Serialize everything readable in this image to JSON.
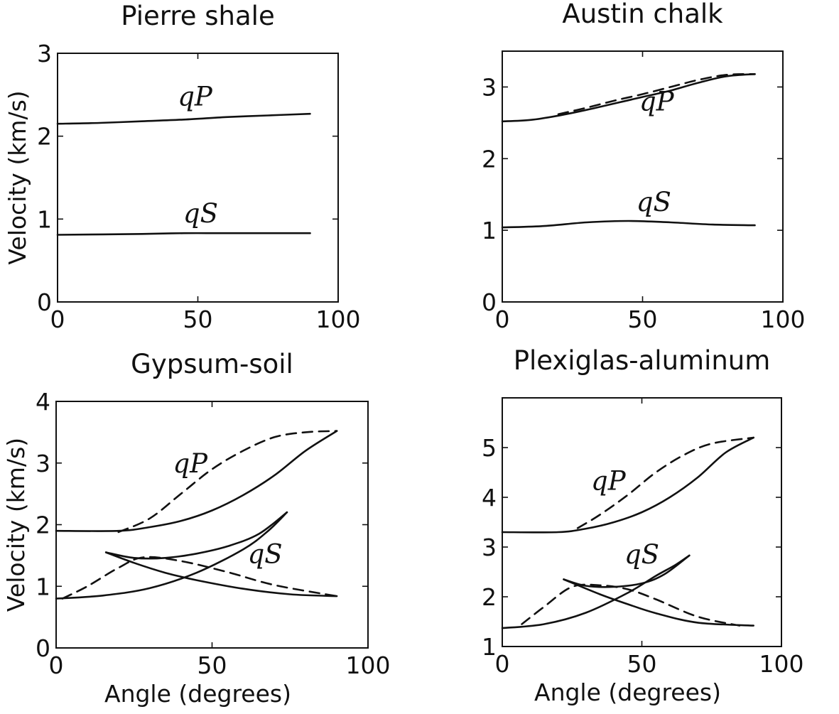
{
  "chart_data": [
    {
      "type": "line",
      "title": "Pierre shale",
      "xlabel": "",
      "ylabel": "Velocity (km/s)",
      "xlim": [
        0,
        100
      ],
      "ylim": [
        0,
        3
      ],
      "xticks": [
        "0",
        "50",
        "100"
      ],
      "yticks": [
        "0",
        "1",
        "2",
        "3"
      ],
      "grid": false,
      "series": [
        {
          "name": "qP",
          "style": "solid",
          "x": [
            0,
            15,
            30,
            45,
            60,
            75,
            90
          ],
          "y": [
            2.15,
            2.16,
            2.18,
            2.2,
            2.23,
            2.25,
            2.27
          ]
        },
        {
          "name": "qS",
          "style": "solid",
          "x": [
            0,
            30,
            45,
            60,
            90
          ],
          "y": [
            0.81,
            0.82,
            0.83,
            0.83,
            0.83
          ]
        }
      ],
      "annotations": [
        {
          "text": "qP",
          "x": 49,
          "y": 2.37
        },
        {
          "text": "qS",
          "x": 51,
          "y": 0.96
        }
      ]
    },
    {
      "type": "line",
      "title": "Austin chalk",
      "xlabel": "",
      "ylabel": "",
      "xlim": [
        0,
        100
      ],
      "ylim": [
        0,
        3.5
      ],
      "xticks": [
        "0",
        "50",
        "100"
      ],
      "yticks": [
        "0",
        "1",
        "2",
        "3"
      ],
      "grid": false,
      "series": [
        {
          "name": "qP",
          "style": "solid",
          "x": [
            0,
            10,
            20,
            30,
            40,
            50,
            60,
            70,
            80,
            90
          ],
          "y": [
            2.52,
            2.54,
            2.6,
            2.68,
            2.77,
            2.86,
            2.95,
            3.06,
            3.15,
            3.18
          ]
        },
        {
          "style": "dashed",
          "x": [
            20,
            30,
            40,
            50,
            60,
            70,
            80,
            90
          ],
          "y": [
            2.62,
            2.71,
            2.81,
            2.9,
            3.0,
            3.1,
            3.17,
            3.18
          ]
        },
        {
          "name": "qS",
          "style": "solid",
          "x": [
            0,
            15,
            30,
            45,
            60,
            75,
            90
          ],
          "y": [
            1.04,
            1.06,
            1.11,
            1.13,
            1.11,
            1.08,
            1.07
          ]
        }
      ],
      "annotations": [
        {
          "text": "qP",
          "x": 55,
          "y": 2.67
        },
        {
          "text": "qS",
          "x": 54,
          "y": 1.27
        }
      ]
    },
    {
      "type": "line",
      "title": "Gypsum-soil",
      "xlabel": "Angle (degrees)",
      "ylabel": "Velocity (km/s)",
      "xlim": [
        0,
        100
      ],
      "ylim": [
        0,
        4
      ],
      "xticks": [
        "0",
        "50",
        "100"
      ],
      "yticks": [
        "0",
        "1",
        "2",
        "3",
        "4"
      ],
      "grid": false,
      "series": [
        {
          "name": "qP",
          "style": "solid",
          "x": [
            0,
            20,
            30,
            40,
            50,
            60,
            70,
            80,
            90
          ],
          "y": [
            1.9,
            1.9,
            1.96,
            2.06,
            2.23,
            2.48,
            2.8,
            3.2,
            3.52
          ]
        },
        {
          "style": "dashed",
          "x": [
            20,
            30,
            40,
            50,
            60,
            70,
            80,
            90
          ],
          "y": [
            1.88,
            2.1,
            2.5,
            2.9,
            3.2,
            3.42,
            3.5,
            3.52
          ]
        },
        {
          "name": "qS",
          "style": "solid",
          "x": [
            0,
            15,
            30,
            45,
            60,
            68,
            74
          ],
          "y": [
            0.8,
            0.85,
            0.97,
            1.22,
            1.6,
            1.9,
            2.2
          ]
        },
        {
          "style": "solid",
          "x": [
            16,
            25,
            35,
            45,
            55,
            65,
            74
          ],
          "y": [
            1.55,
            1.46,
            1.46,
            1.53,
            1.65,
            1.85,
            2.2
          ]
        },
        {
          "style": "solid",
          "x": [
            16,
            25,
            35,
            45,
            60,
            75,
            90
          ],
          "y": [
            1.55,
            1.38,
            1.22,
            1.1,
            0.96,
            0.87,
            0.84
          ]
        },
        {
          "style": "dashed",
          "x": [
            2,
            10,
            20,
            28,
            40,
            55,
            70,
            90
          ],
          "y": [
            0.8,
            1.0,
            1.3,
            1.47,
            1.41,
            1.23,
            1.02,
            0.84
          ]
        }
      ],
      "annotations": [
        {
          "text": "qP",
          "x": 43,
          "y": 2.85
        },
        {
          "text": "qS",
          "x": 67,
          "y": 1.38
        }
      ]
    },
    {
      "type": "line",
      "title": "Plexiglas-aluminum",
      "xlabel": "Angle (degrees)",
      "ylabel": "",
      "xlim": [
        0,
        100
      ],
      "ylim": [
        1,
        6
      ],
      "xticks": [
        "0",
        "50",
        "100"
      ],
      "yticks": [
        "1",
        "2",
        "3",
        "4",
        "5"
      ],
      "grid": false,
      "series": [
        {
          "name": "qP",
          "style": "solid",
          "x": [
            0,
            20,
            30,
            40,
            50,
            60,
            70,
            80,
            90
          ],
          "y": [
            3.3,
            3.3,
            3.37,
            3.5,
            3.7,
            4.0,
            4.4,
            4.9,
            5.2
          ]
        },
        {
          "style": "dashed",
          "x": [
            27,
            35,
            45,
            55,
            65,
            75,
            90
          ],
          "y": [
            3.38,
            3.65,
            4.05,
            4.5,
            4.85,
            5.08,
            5.2
          ]
        },
        {
          "name": "qS",
          "style": "solid",
          "x": [
            0,
            15,
            30,
            45,
            55,
            62,
            67
          ],
          "y": [
            1.37,
            1.45,
            1.68,
            2.08,
            2.42,
            2.64,
            2.83
          ]
        },
        {
          "style": "solid",
          "x": [
            22,
            30,
            40,
            50,
            58,
            67
          ],
          "y": [
            2.35,
            2.22,
            2.2,
            2.27,
            2.45,
            2.83
          ]
        },
        {
          "style": "solid",
          "x": [
            22,
            35,
            45,
            55,
            70,
            90
          ],
          "y": [
            2.35,
            2.05,
            1.85,
            1.67,
            1.48,
            1.42
          ]
        },
        {
          "style": "dashed",
          "x": [
            7,
            15,
            25,
            35,
            45,
            55,
            70,
            85
          ],
          "y": [
            1.45,
            1.8,
            2.2,
            2.23,
            2.15,
            1.95,
            1.6,
            1.42
          ]
        }
      ],
      "annotations": [
        {
          "text": "qP",
          "x": 38,
          "y": 4.15
        },
        {
          "text": "qS",
          "x": 50,
          "y": 2.67
        }
      ]
    }
  ]
}
